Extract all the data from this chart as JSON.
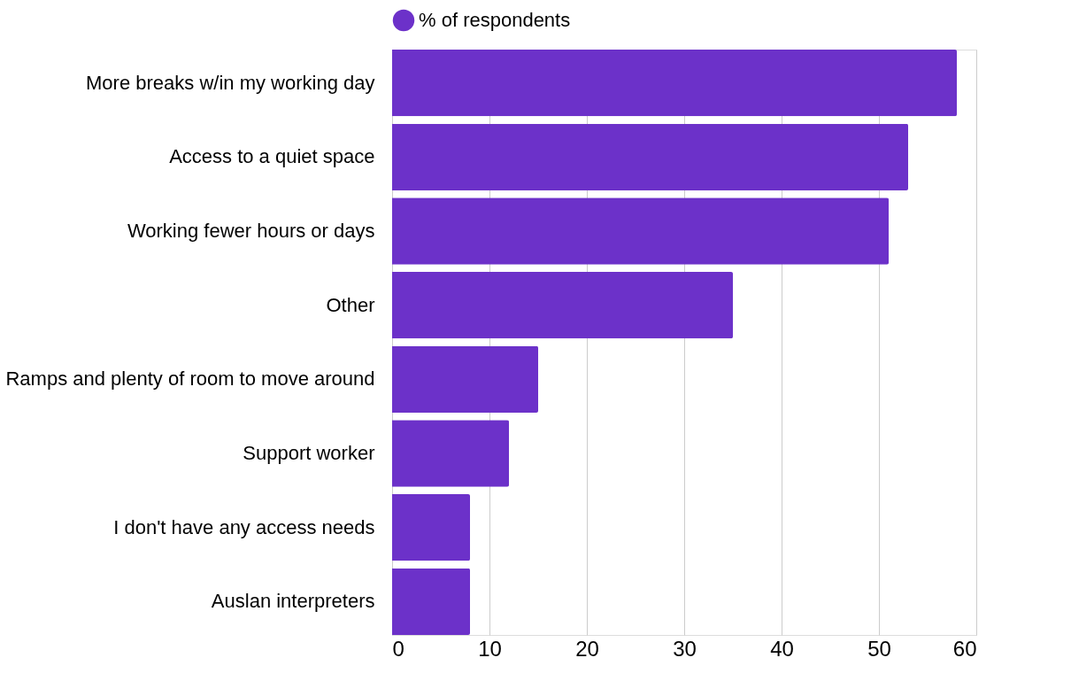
{
  "chart_data": {
    "type": "bar",
    "orientation": "horizontal",
    "categories": [
      "More breaks w/in my working day",
      "Access to a quiet space",
      "Working fewer hours or days",
      "Other",
      "Ramps and plenty of room to move around",
      "Support worker",
      "I don't have any access needs",
      "Auslan interpreters"
    ],
    "series": [
      {
        "name": "% of respondents",
        "color": "#6c31c9",
        "values": [
          58,
          53,
          51,
          35,
          15,
          12,
          8,
          8
        ]
      }
    ],
    "xlim": [
      0,
      60
    ],
    "xticks": [
      0,
      10,
      20,
      30,
      40,
      50,
      60
    ],
    "grid": "x",
    "legend": "top"
  }
}
